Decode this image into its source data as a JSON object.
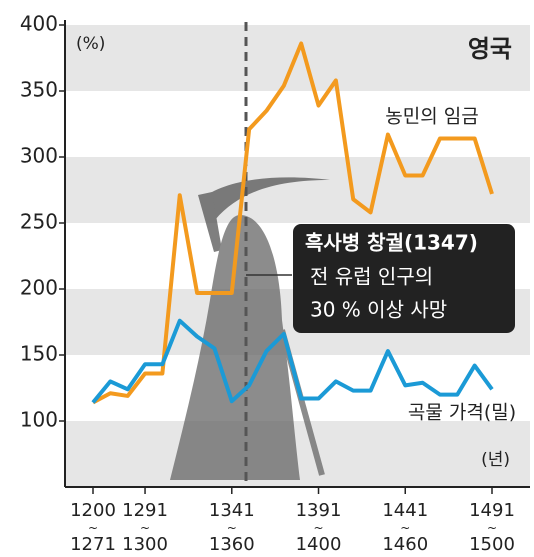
{
  "chart_data": {
    "type": "line",
    "title": "영국",
    "y_label": "(%)",
    "x_label": "(년)",
    "categories": [
      "1200~1271",
      null,
      null,
      "1291~1300",
      null,
      null,
      null,
      null,
      "1341~1360",
      null,
      null,
      null,
      null,
      "1391~1400",
      null,
      null,
      null,
      null,
      "1441~1460",
      null,
      null,
      null,
      null,
      "1491~1500"
    ],
    "series": [
      {
        "name": "농민의 임금",
        "color": "#f39a1e",
        "values": [
          114,
          121,
          119,
          136,
          136,
          271,
          197,
          197,
          197,
          321,
          335,
          354,
          386,
          339,
          358,
          268,
          258,
          317,
          286,
          286,
          314,
          314,
          314,
          272
        ]
      },
      {
        "name": "곡물 가격(밀)",
        "color": "#1b9ad6",
        "values": [
          114,
          130,
          124,
          143,
          143,
          176,
          164,
          155,
          115,
          127,
          153,
          166,
          117,
          117,
          130,
          123,
          123,
          153,
          127,
          129,
          120,
          120,
          142,
          124
        ]
      }
    ],
    "annotation": [
      "흑사병 창궐(1347)",
      "전 유럽 인구의",
      "30 % 이상 사망"
    ],
    "ylim": [
      50,
      400
    ],
    "yticks": [
      100,
      150,
      200,
      250,
      300,
      350,
      400
    ],
    "grid": true
  }
}
